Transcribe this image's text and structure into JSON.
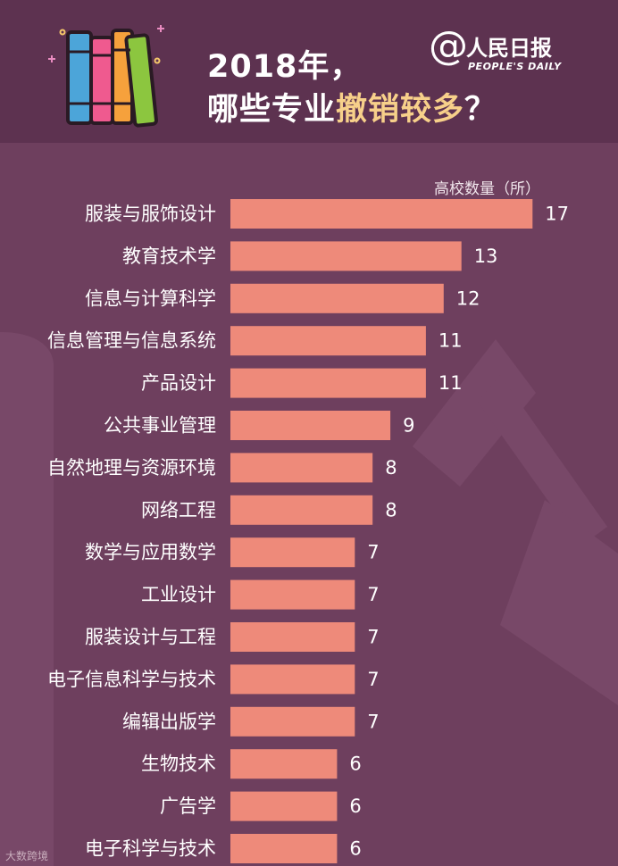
{
  "header": {
    "title_line1": "2018年，",
    "title_line2_prefix": "哪些专业",
    "title_line2_highlight": "撤销较多",
    "title_line2_suffix": "？",
    "brand_at": "@",
    "brand_name": "人民日报",
    "brand_english": "PEOPLE'S DAILY"
  },
  "colors": {
    "background": "#6e3f5e",
    "header_band": "#5d3250",
    "bar": "#ee8a7a",
    "title_highlight": "#f7d08a",
    "text": "#ffffff"
  },
  "icons": [
    "books-icon"
  ],
  "watermark": "大数跨境",
  "chart_data": {
    "type": "bar",
    "orientation": "horizontal",
    "value_axis_label": "高校数量（所）",
    "categories": [
      "服装与服饰设计",
      "教育技术学",
      "信息与计算科学",
      "信息管理与信息系统",
      "产品设计",
      "公共事业管理",
      "自然地理与资源环境",
      "网络工程",
      "数学与应用数学",
      "工业设计",
      "服装设计与工程",
      "电子信息科学与技术",
      "编辑出版学",
      "生物技术",
      "广告学",
      "电子科学与技术"
    ],
    "values": [
      17,
      13,
      12,
      11,
      11,
      9,
      8,
      8,
      7,
      7,
      7,
      7,
      7,
      6,
      6,
      6
    ],
    "data_labels": true,
    "grid": false,
    "legend": "none"
  }
}
